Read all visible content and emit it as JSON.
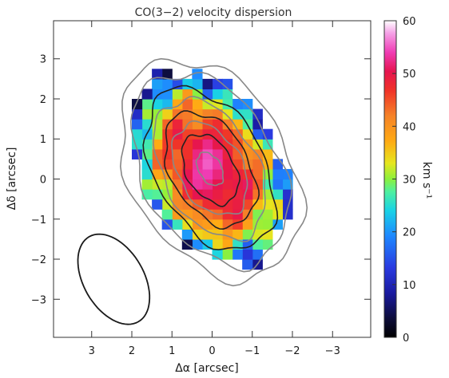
{
  "chart_data": {
    "type": "heatmap",
    "title": "CO(3−2) velocity dispersion",
    "xlabel": "Δα [arcsec]",
    "ylabel": "Δδ [arcsec]",
    "xlim": [
      3.95,
      -3.95
    ],
    "ylim": [
      -3.95,
      3.95
    ],
    "x_ticks": [
      3,
      2,
      1,
      0,
      -1,
      -2,
      -3
    ],
    "x_tick_labels": [
      "3",
      "2",
      "1",
      "0",
      "−1",
      "−2",
      "−3"
    ],
    "y_ticks": [
      3,
      2,
      1,
      0,
      -1,
      -2,
      -3
    ],
    "y_tick_labels": [
      "3",
      "2",
      "1",
      "0",
      "−1",
      "−2",
      "−3"
    ],
    "colorbar": {
      "label": "km s⁻¹",
      "range": [
        0,
        60
      ],
      "ticks": [
        0,
        10,
        20,
        30,
        40,
        50,
        60
      ],
      "tick_labels": [
        "0",
        "10",
        "20",
        "30",
        "40",
        "50",
        "60"
      ]
    },
    "pixel_size_arcsec": 0.25,
    "map_model": {
      "center": [
        0.05,
        0.25
      ],
      "peak_kms": 53,
      "rotation_deg": 30,
      "semi_major_arcsec": 2.55,
      "semi_minor_arcsec": 1.75,
      "edge_kms": 3
    },
    "beam": {
      "center": [
        2.45,
        -2.5
      ],
      "major_arcsec": 2.45,
      "minor_arcsec": 1.5,
      "rotation_deg": 30
    },
    "contours": [
      {
        "color": "#222222",
        "a": 0.95,
        "b": 0.6
      },
      {
        "color": "#222222",
        "a": 1.55,
        "b": 0.97
      },
      {
        "color": "#222222",
        "a": 2.2,
        "b": 1.35
      },
      {
        "color": "#888888",
        "a": 0.45,
        "b": 0.28
      },
      {
        "color": "#888888",
        "a": 1.25,
        "b": 0.8
      },
      {
        "color": "#888888",
        "a": 1.9,
        "b": 1.17
      },
      {
        "color": "#888888",
        "a": 2.6,
        "b": 1.68
      },
      {
        "color": "#888888",
        "a": 2.95,
        "b": 1.98
      }
    ]
  }
}
